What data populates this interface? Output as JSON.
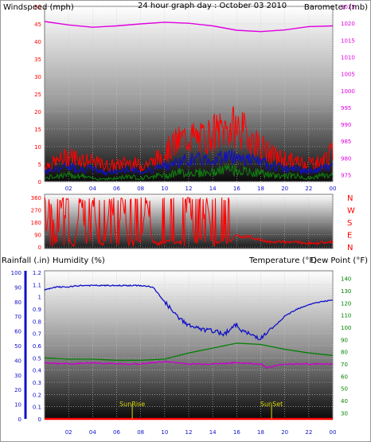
{
  "colors": {
    "windspeed": "#ff0000",
    "windgust": "#ff0000",
    "wind_avg": "#1010c8",
    "wind_low": "#10800f",
    "barometer": "#e000e0",
    "title": "#e8e800",
    "direction": "#ff0000",
    "rainfall": "#ff0000",
    "humidity": "#1010c8",
    "temperature": "#008000",
    "dewpoint": "#cc00cc",
    "markers": "#d8d800"
  },
  "chart_data": [
    {
      "type": "line",
      "id": "wind-barometer",
      "title": "24 hour graph day : October 03 2010",
      "ylabel": "Windspeed (mph)",
      "y2label": "Barometer (mb)",
      "ylim": [
        0,
        50
      ],
      "yticks": [
        0,
        5,
        10,
        15,
        20,
        25,
        30,
        35,
        40,
        45,
        50
      ],
      "y2lim": [
        973,
        1025
      ],
      "y2ticks": [
        975,
        980,
        985,
        990,
        995,
        1000,
        1005,
        1010,
        1015,
        1020,
        1025
      ],
      "xlim": [
        0,
        24
      ],
      "xticks": [
        "02",
        "04",
        "06",
        "08",
        "10",
        "12",
        "14",
        "16",
        "18",
        "20",
        "22",
        "00"
      ],
      "grid": true,
      "series": [
        {
          "name": "gust",
          "x": [
            0,
            1,
            2,
            3,
            4,
            5,
            6,
            7,
            8,
            9,
            10,
            11,
            12,
            13,
            14,
            15,
            16,
            17,
            18,
            19,
            20,
            21,
            22,
            23,
            24
          ],
          "values": [
            5,
            6,
            8,
            7,
            6,
            5,
            5,
            6,
            5,
            6,
            9,
            12,
            14,
            13,
            15,
            16,
            17,
            14,
            11,
            8,
            7,
            6,
            6,
            6,
            9
          ]
        },
        {
          "name": "speed",
          "x": [
            0,
            1,
            2,
            3,
            4,
            5,
            6,
            7,
            8,
            9,
            10,
            11,
            12,
            13,
            14,
            15,
            16,
            17,
            18,
            19,
            20,
            21,
            22,
            23,
            24
          ],
          "values": [
            3,
            4,
            5,
            4,
            4,
            3,
            3,
            4,
            3,
            4,
            5,
            6,
            7,
            7,
            7,
            8,
            8,
            7,
            6,
            5,
            4,
            4,
            3,
            4,
            5
          ]
        },
        {
          "name": "low",
          "x": [
            0,
            1,
            2,
            3,
            4,
            5,
            6,
            7,
            8,
            9,
            10,
            11,
            12,
            13,
            14,
            15,
            16,
            17,
            18,
            19,
            20,
            21,
            22,
            23,
            24
          ],
          "values": [
            1,
            2,
            2,
            2,
            1,
            1,
            1,
            2,
            1,
            2,
            2,
            3,
            3,
            3,
            3,
            4,
            4,
            3,
            3,
            2,
            2,
            2,
            1,
            2,
            2
          ]
        },
        {
          "name": "barometer",
          "axis": "y2",
          "x": [
            0,
            2,
            4,
            6,
            8,
            10,
            12,
            14,
            16,
            18,
            20,
            22,
            24
          ],
          "values": [
            1020.5,
            1019.5,
            1018.8,
            1019.2,
            1019.8,
            1020.3,
            1020.0,
            1019.2,
            1017.9,
            1017.5,
            1018.0,
            1019.0,
            1019.2
          ]
        }
      ]
    },
    {
      "type": "scatter",
      "id": "wind-direction",
      "ylim": [
        0,
        360
      ],
      "yticks": [
        0,
        90,
        180,
        270,
        360
      ],
      "ylabels_right": [
        "N",
        "E",
        "S",
        "W",
        "N"
      ],
      "xlim": [
        0,
        24
      ],
      "grid": true,
      "series": [
        {
          "name": "direction",
          "x": [
            0,
            0.5,
            1,
            1.5,
            2,
            2.5,
            3,
            3.5,
            4,
            4.5,
            5,
            5.5,
            6,
            6.5,
            7,
            7.5,
            8,
            8.5,
            9,
            9.5,
            10,
            10.5,
            11,
            11.5,
            12,
            12.5,
            13,
            13.5,
            14,
            14.5,
            15,
            15.5,
            16,
            16.5,
            17,
            17.5,
            18,
            18.5,
            19,
            19.5,
            20,
            20.5,
            21,
            21.5,
            22,
            22.5,
            23,
            23.5,
            24
          ],
          "values": [
            30,
            340,
            20,
            350,
            40,
            10,
            355,
            20,
            345,
            30,
            15,
            350,
            25,
            340,
            20,
            60,
            30,
            345,
            40,
            20,
            35,
            50,
            30,
            45,
            350,
            40,
            30,
            350,
            45,
            30,
            60,
            40,
            90,
            70,
            80,
            60,
            50,
            40,
            30,
            40,
            35,
            30,
            40,
            25,
            30,
            20,
            35,
            30,
            40
          ]
        }
      ]
    },
    {
      "type": "line",
      "id": "rain-humidity-temp",
      "ylabel": "Rainfall (.in)",
      "ylabel2": "Humidity (%)",
      "y2label": "Temperature (°F)",
      "y2label2": "Dew Point (°F)",
      "ylim_rain": [
        0,
        1.2
      ],
      "yticks_rain": [
        0,
        0.1,
        0.2,
        0.3,
        0.4,
        0.5,
        0.6,
        0.7,
        0.8,
        0.9,
        1,
        1.1,
        1.2
      ],
      "ylim_humidity": [
        0,
        100
      ],
      "yticks_humidity": [
        0,
        10,
        20,
        30,
        40,
        50,
        60,
        70,
        80,
        90,
        100
      ],
      "y2lim": [
        25,
        145
      ],
      "y2ticks": [
        30,
        40,
        50,
        60,
        70,
        80,
        90,
        100,
        110,
        120,
        130,
        140
      ],
      "xlim": [
        0,
        24
      ],
      "xticks": [
        "02",
        "04",
        "06",
        "08",
        "10",
        "12",
        "14",
        "16",
        "18",
        "20",
        "22",
        "00"
      ],
      "grid": true,
      "annotations": [
        {
          "text": "SunRise",
          "x": 7.3
        },
        {
          "text": "SunSet",
          "x": 18.9
        }
      ],
      "series": [
        {
          "name": "humidity",
          "axis": "humidity",
          "x": [
            0,
            1,
            2,
            3,
            4,
            5,
            6,
            7,
            8,
            9,
            10,
            11,
            12,
            13,
            14,
            15,
            15.5,
            16,
            16.5,
            17,
            18,
            19,
            20,
            21,
            22,
            23,
            24
          ],
          "values": [
            88,
            90,
            90,
            91,
            91,
            91,
            91,
            91,
            91,
            90,
            80,
            70,
            64,
            61,
            60,
            58,
            62,
            64,
            60,
            58,
            55,
            62,
            70,
            75,
            78,
            80,
            81
          ]
        },
        {
          "name": "temperature",
          "axis": "y2",
          "x": [
            0,
            2,
            4,
            6,
            8,
            10,
            12,
            14,
            16,
            18,
            20,
            22,
            24
          ],
          "values": [
            75,
            74,
            74,
            73,
            73,
            74,
            79,
            83,
            87,
            86,
            82,
            79,
            77
          ]
        },
        {
          "name": "dewpoint",
          "axis": "y2",
          "x": [
            0,
            2,
            4,
            6,
            8,
            9,
            10,
            11,
            12,
            14,
            16,
            18,
            18.5,
            19,
            20,
            22,
            24
          ],
          "values": [
            71,
            70,
            71,
            70,
            70,
            71,
            72,
            71,
            70,
            70,
            71,
            70,
            67,
            68,
            70,
            70,
            70
          ]
        },
        {
          "name": "rainfall",
          "axis": "rain",
          "x": [
            0,
            24
          ],
          "values": [
            0,
            0
          ]
        }
      ]
    }
  ]
}
